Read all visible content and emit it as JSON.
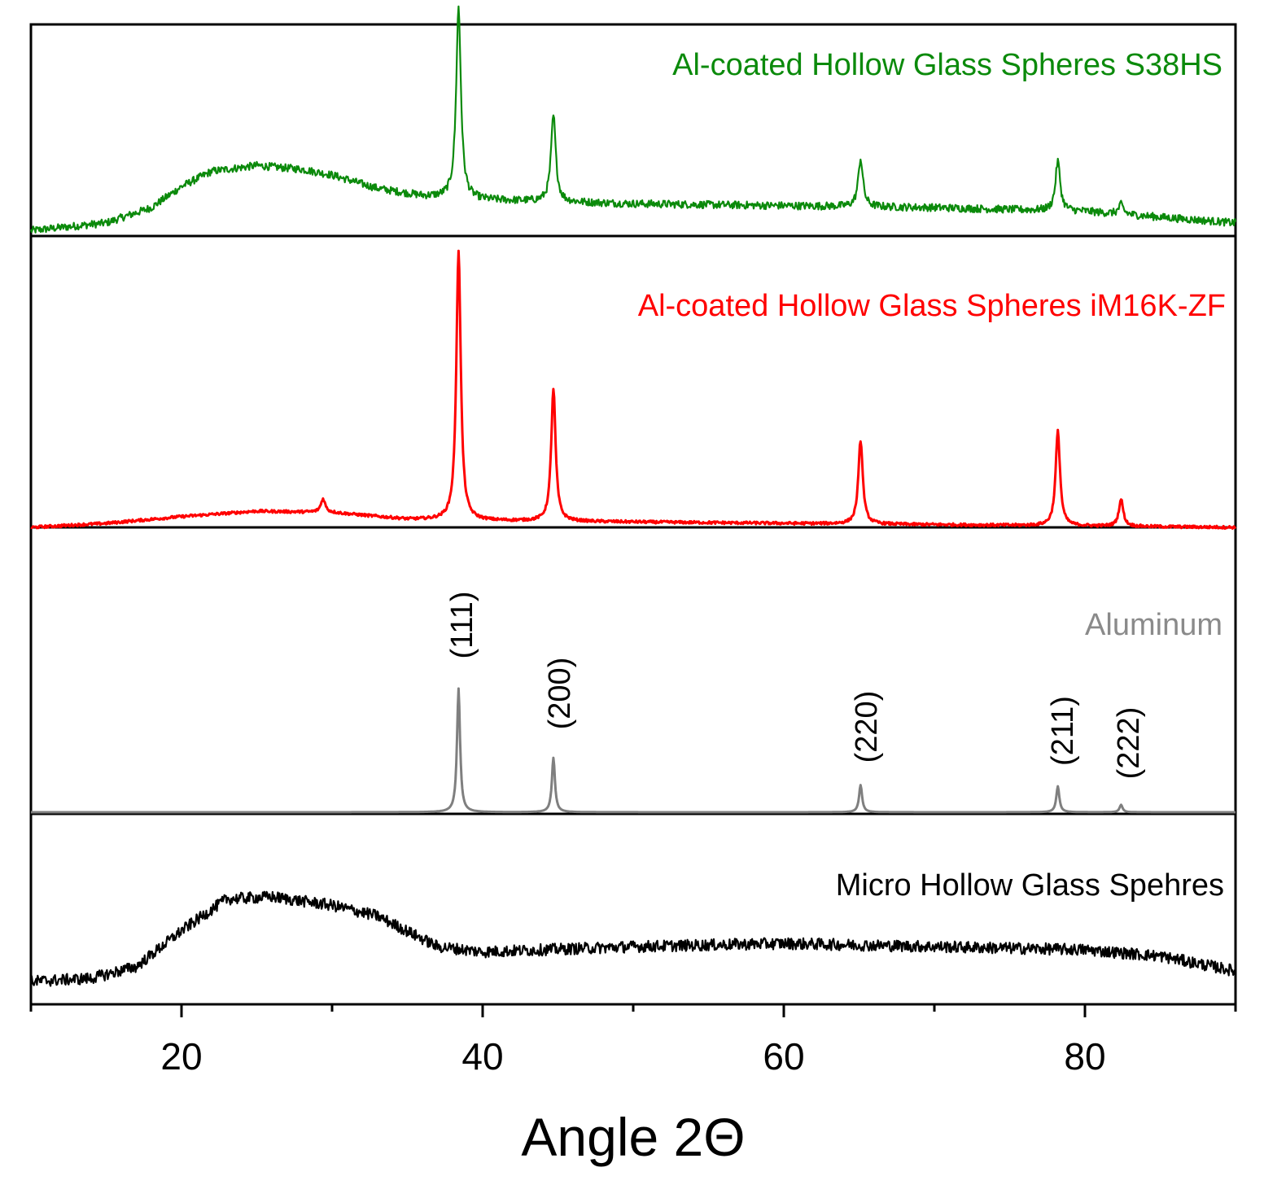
{
  "chart_data": {
    "type": "line",
    "xlabel": "Angle 2Θ",
    "ylabel": "",
    "xlim": [
      10,
      90
    ],
    "x_ticks_major": [
      20,
      40,
      60,
      80
    ],
    "x_ticks_minor": [
      10,
      30,
      50,
      70,
      90
    ],
    "grid": false,
    "layout": "stacked-offset",
    "series": [
      {
        "name": "Al-coated Hollow Glass Spheres S38HS",
        "color": "#0b8a0b",
        "profile": [
          [
            10,
            0.02
          ],
          [
            15,
            0.06
          ],
          [
            18,
            0.14
          ],
          [
            20,
            0.25
          ],
          [
            22,
            0.33
          ],
          [
            25,
            0.36
          ],
          [
            28,
            0.34
          ],
          [
            30,
            0.31
          ],
          [
            33,
            0.24
          ],
          [
            36,
            0.2
          ],
          [
            40,
            0.18
          ],
          [
            50,
            0.16
          ],
          [
            60,
            0.15
          ],
          [
            70,
            0.14
          ],
          [
            80,
            0.12
          ],
          [
            90,
            0.06
          ]
        ],
        "peaks": [
          {
            "x": 38.4,
            "height": 1.0
          },
          {
            "x": 44.7,
            "height": 0.45
          },
          {
            "x": 65.1,
            "height": 0.25
          },
          {
            "x": 78.2,
            "height": 0.26
          },
          {
            "x": 82.4,
            "height": 0.05
          }
        ],
        "noise": 0.04
      },
      {
        "name": "Al-coated Hollow Glass Spheres iM16K-ZF",
        "color": "#ff0000",
        "profile": [
          [
            10,
            0.0
          ],
          [
            15,
            0.015
          ],
          [
            20,
            0.04
          ],
          [
            25,
            0.06
          ],
          [
            30,
            0.055
          ],
          [
            35,
            0.03
          ],
          [
            40,
            0.025
          ],
          [
            60,
            0.015
          ],
          [
            90,
            0.0
          ]
        ],
        "peaks": [
          {
            "x": 29.4,
            "height": 0.05
          },
          {
            "x": 38.4,
            "height": 1.0
          },
          {
            "x": 44.7,
            "height": 0.49
          },
          {
            "x": 65.1,
            "height": 0.31
          },
          {
            "x": 78.2,
            "height": 0.35
          },
          {
            "x": 82.4,
            "height": 0.1
          }
        ],
        "noise": 0.01
      },
      {
        "name": "Aluminum",
        "color": "#7f7f7f",
        "profile": [
          [
            10,
            0.0
          ],
          [
            90,
            0.0
          ]
        ],
        "peaks": [
          {
            "x": 38.4,
            "height": 1.0,
            "hkl": "(111)"
          },
          {
            "x": 44.7,
            "height": 0.44,
            "hkl": "(200)"
          },
          {
            "x": 65.1,
            "height": 0.22,
            "hkl": "(220)"
          },
          {
            "x": 78.2,
            "height": 0.21,
            "hkl": "(211)"
          },
          {
            "x": 82.4,
            "height": 0.06,
            "hkl": "(222)"
          }
        ],
        "noise": 0.0
      },
      {
        "name": "Micro Hollow Glass Spehres",
        "color": "#000000",
        "profile": [
          [
            10,
            0.0
          ],
          [
            14,
            0.03
          ],
          [
            17,
            0.14
          ],
          [
            20,
            0.48
          ],
          [
            23,
            0.78
          ],
          [
            26,
            0.8
          ],
          [
            30,
            0.72
          ],
          [
            33,
            0.62
          ],
          [
            37,
            0.33
          ],
          [
            40,
            0.28
          ],
          [
            50,
            0.33
          ],
          [
            60,
            0.36
          ],
          [
            70,
            0.33
          ],
          [
            80,
            0.3
          ],
          [
            85,
            0.24
          ],
          [
            90,
            0.1
          ]
        ],
        "peaks": [],
        "noise": 0.11
      }
    ]
  }
}
